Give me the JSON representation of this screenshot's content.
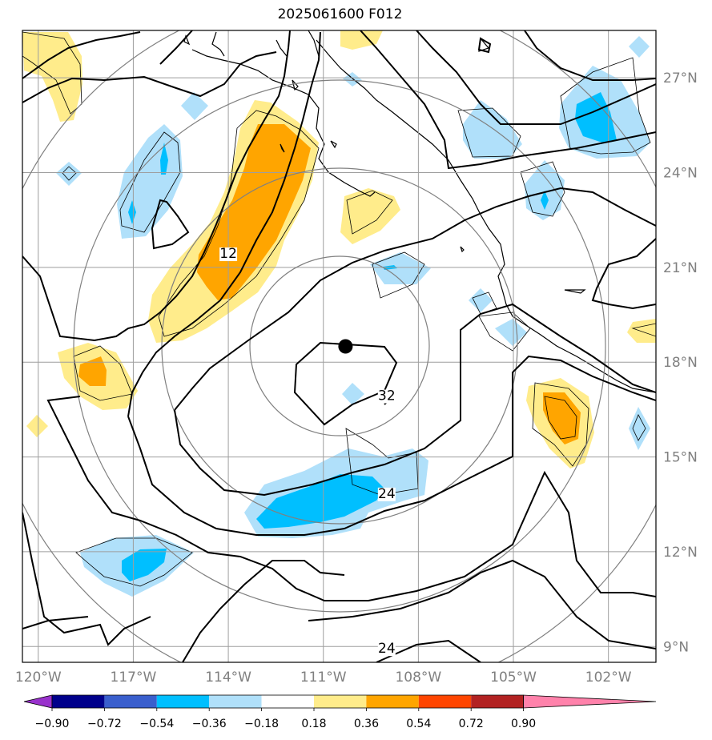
{
  "title": "2025061600 F012",
  "map": {
    "lon_range": [
      -120.5,
      -100.5
    ],
    "lat_range": [
      8.5,
      28.5
    ],
    "grid": true,
    "lon_ticks": [
      {
        "lon": -120,
        "label": "120°W"
      },
      {
        "lon": -117,
        "label": "117°W"
      },
      {
        "lon": -114,
        "label": "114°W"
      },
      {
        "lon": -111,
        "label": "111°W"
      },
      {
        "lon": -108,
        "label": "108°W"
      },
      {
        "lon": -105,
        "label": "105°W"
      },
      {
        "lon": -102,
        "label": "102°W"
      }
    ],
    "lat_ticks": [
      {
        "lat": 27,
        "label": "27°N"
      },
      {
        "lat": 24,
        "label": "24°N"
      },
      {
        "lat": 21,
        "label": "21°N"
      },
      {
        "lat": 18,
        "label": "18°N"
      },
      {
        "lat": 15,
        "label": "15°N"
      },
      {
        "lat": 12,
        "label": "12°N"
      },
      {
        "lat": 9,
        "label": "9°N"
      }
    ],
    "storm_center": {
      "lon": -110.3,
      "lat": 18.5
    },
    "contour_labels": [
      {
        "text": "12",
        "lon": -114.0,
        "lat": 21.3
      },
      {
        "text": "32",
        "lon": -109.0,
        "lat": 16.8
      },
      {
        "text": "24",
        "lon": -109.0,
        "lat": 13.7
      },
      {
        "text": "24",
        "lon": -109.0,
        "lat": 8.8
      }
    ]
  },
  "colorbar": {
    "tick_labels": [
      "−0.90",
      "−0.72",
      "−0.54",
      "−0.36",
      "−0.18",
      "0.18",
      "0.36",
      "0.54",
      "0.72",
      "0.90"
    ],
    "colors": {
      "under": "#9932cc",
      "bins": [
        "#00008b",
        "#3a5fcd",
        "#00bfff",
        "#b0e0fa",
        "#ffffff",
        "#ffec8b",
        "#ffa500",
        "#ff4500",
        "#b22222"
      ],
      "over": "#ff82ab"
    }
  }
}
